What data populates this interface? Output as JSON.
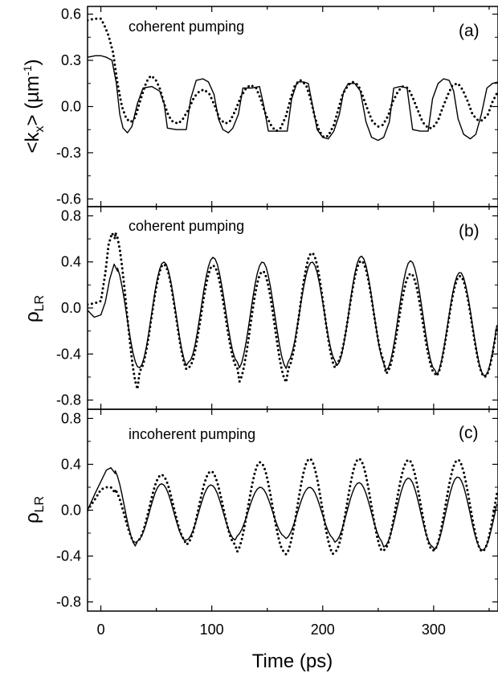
{
  "figure": {
    "xlabel": "Time (ps)",
    "xlim": [
      -12,
      358
    ],
    "xticks": [
      0,
      100,
      200,
      300
    ],
    "xtick_labels": [
      "0",
      "100",
      "200",
      "300"
    ]
  },
  "chart_data": [
    {
      "type": "line",
      "panel": "(a)",
      "annotation": "coherent pumping",
      "ylabel_main": "<k",
      "ylabel_sub": "x",
      "ylabel_rest": "> (µm",
      "ylabel_sup": "-1",
      "ylabel_end": ")",
      "ylim": [
        -0.65,
        0.65
      ],
      "yticks": [
        0.6,
        0.3,
        0.0,
        -0.3,
        -0.6
      ],
      "ytick_labels": [
        "0.6",
        "0.3",
        "0.0",
        "-0.3",
        "-0.6"
      ],
      "series": [
        {
          "style": "solid",
          "points": [
            [
              -12,
              0.32
            ],
            [
              -5,
              0.33
            ],
            [
              0,
              0.33
            ],
            [
              5,
              0.32
            ],
            [
              10,
              0.3
            ],
            [
              14,
              0.15
            ],
            [
              17,
              -0.05
            ],
            [
              20,
              -0.14
            ],
            [
              24,
              -0.17
            ],
            [
              28,
              -0.13
            ],
            [
              33,
              0.02
            ],
            [
              38,
              0.12
            ],
            [
              46,
              0.13
            ],
            [
              53,
              0.1
            ],
            [
              57,
              0.02
            ],
            [
              60,
              -0.14
            ],
            [
              68,
              -0.15
            ],
            [
              77,
              -0.15
            ],
            [
              81,
              0.05
            ],
            [
              86,
              0.17
            ],
            [
              92,
              0.18
            ],
            [
              97,
              0.16
            ],
            [
              102,
              0.08
            ],
            [
              106,
              -0.08
            ],
            [
              110,
              -0.15
            ],
            [
              115,
              -0.17
            ],
            [
              119,
              -0.14
            ],
            [
              124,
              -0.05
            ],
            [
              128,
              0.12
            ],
            [
              136,
              0.12
            ],
            [
              143,
              0.13
            ],
            [
              147,
              0.0
            ],
            [
              151,
              -0.16
            ],
            [
              160,
              -0.16
            ],
            [
              168,
              -0.16
            ],
            [
              172,
              0.05
            ],
            [
              177,
              0.16
            ],
            [
              183,
              0.16
            ],
            [
              187,
              0.15
            ],
            [
              191,
              0.0
            ],
            [
              195,
              -0.15
            ],
            [
              200,
              -0.2
            ],
            [
              205,
              -0.21
            ],
            [
              210,
              -0.16
            ],
            [
              215,
              -0.05
            ],
            [
              219,
              0.1
            ],
            [
              223,
              0.15
            ],
            [
              229,
              0.15
            ],
            [
              234,
              0.1
            ],
            [
              239,
              -0.1
            ],
            [
              244,
              -0.2
            ],
            [
              250,
              -0.22
            ],
            [
              255,
              -0.2
            ],
            [
              260,
              -0.1
            ],
            [
              264,
              0.12
            ],
            [
              270,
              0.13
            ],
            [
              276,
              0.12
            ],
            [
              281,
              -0.15
            ],
            [
              288,
              -0.16
            ],
            [
              295,
              -0.16
            ],
            [
              299,
              0.05
            ],
            [
              304,
              0.15
            ],
            [
              309,
              0.18
            ],
            [
              314,
              0.17
            ],
            [
              318,
              0.1
            ],
            [
              322,
              -0.08
            ],
            [
              327,
              -0.18
            ],
            [
              333,
              -0.21
            ],
            [
              338,
              -0.18
            ],
            [
              343,
              -0.05
            ],
            [
              348,
              0.12
            ],
            [
              353,
              0.15
            ],
            [
              358,
              0.16
            ]
          ]
        },
        {
          "style": "dotted",
          "points": [
            [
              -12,
              0.56
            ],
            [
              -6,
              0.57
            ],
            [
              0,
              0.57
            ],
            [
              3,
              0.53
            ],
            [
              7,
              0.46
            ],
            [
              11,
              0.35
            ],
            [
              15,
              0.15
            ],
            [
              19,
              0.0
            ],
            [
              23,
              -0.08
            ],
            [
              27,
              -0.1
            ],
            [
              31,
              -0.07
            ],
            [
              36,
              0.05
            ],
            [
              41,
              0.16
            ],
            [
              45,
              0.2
            ],
            [
              49,
              0.18
            ],
            [
              53,
              0.12
            ],
            [
              57,
              0.02
            ],
            [
              61,
              -0.06
            ],
            [
              65,
              -0.1
            ],
            [
              70,
              -0.11
            ],
            [
              74,
              -0.08
            ],
            [
              79,
              -0.02
            ],
            [
              84,
              0.06
            ],
            [
              89,
              0.1
            ],
            [
              93,
              0.11
            ],
            [
              98,
              0.08
            ],
            [
              103,
              0.0
            ],
            [
              107,
              -0.08
            ],
            [
              112,
              -0.11
            ],
            [
              116,
              -0.1
            ],
            [
              121,
              -0.03
            ],
            [
              126,
              0.06
            ],
            [
              131,
              0.12
            ],
            [
              135,
              0.14
            ],
            [
              140,
              0.12
            ],
            [
              144,
              0.05
            ],
            [
              149,
              -0.06
            ],
            [
              154,
              -0.13
            ],
            [
              158,
              -0.16
            ],
            [
              162,
              -0.14
            ],
            [
              167,
              -0.06
            ],
            [
              171,
              0.05
            ],
            [
              175,
              0.14
            ],
            [
              180,
              0.17
            ],
            [
              185,
              0.14
            ],
            [
              189,
              0.05
            ],
            [
              193,
              -0.07
            ],
            [
              197,
              -0.16
            ],
            [
              201,
              -0.2
            ],
            [
              205,
              -0.19
            ],
            [
              210,
              -0.12
            ],
            [
              214,
              -0.02
            ],
            [
              218,
              0.08
            ],
            [
              223,
              0.14
            ],
            [
              227,
              0.16
            ],
            [
              232,
              0.14
            ],
            [
              236,
              0.07
            ],
            [
              241,
              -0.03
            ],
            [
              245,
              -0.1
            ],
            [
              250,
              -0.13
            ],
            [
              254,
              -0.12
            ],
            [
              259,
              -0.06
            ],
            [
              263,
              0.03
            ],
            [
              268,
              0.1
            ],
            [
              272,
              0.13
            ],
            [
              277,
              0.12
            ],
            [
              281,
              0.06
            ],
            [
              286,
              -0.03
            ],
            [
              290,
              -0.1
            ],
            [
              295,
              -0.14
            ],
            [
              299,
              -0.14
            ],
            [
              304,
              -0.09
            ],
            [
              308,
              -0.01
            ],
            [
              313,
              0.08
            ],
            [
              317,
              0.14
            ],
            [
              322,
              0.15
            ],
            [
              326,
              0.11
            ],
            [
              331,
              0.03
            ],
            [
              335,
              -0.05
            ],
            [
              340,
              -0.09
            ],
            [
              344,
              -0.09
            ],
            [
              349,
              -0.05
            ],
            [
              353,
              0.03
            ],
            [
              358,
              0.1
            ]
          ]
        }
      ]
    },
    {
      "type": "line",
      "panel": "(b)",
      "annotation": "coherent pumping",
      "ylabel_main": "ρ",
      "ylabel_sub": "LR",
      "ylim": [
        -0.88,
        0.88
      ],
      "yticks": [
        0.8,
        0.4,
        0.0,
        -0.4,
        -0.8
      ],
      "ytick_labels": [
        "0.8",
        "0.4",
        "0.0",
        "-0.4",
        "-0.8"
      ],
      "series": [
        {
          "style": "solid",
          "period": 44.5,
          "phase": -10,
          "trough_first": true,
          "start_points": [
            [
              -12,
              -0.02
            ],
            [
              -6,
              -0.08
            ],
            [
              0,
              -0.06
            ],
            [
              4,
              0.05
            ],
            [
              8,
              0.25
            ],
            [
              12,
              0.38
            ],
            [
              15,
              0.32
            ]
          ],
          "start_after": 15,
          "peaks": [
            0.38,
            0.4,
            0.44,
            0.4,
            0.4,
            0.45,
            0.41,
            0.31
          ],
          "troughs": [
            -0.52,
            -0.52,
            -0.47,
            -0.53,
            -0.47,
            -0.5,
            -0.54,
            -0.59
          ]
        },
        {
          "style": "dotted",
          "period": 44.5,
          "phase": -10,
          "trough_first": true,
          "start_points": [
            [
              -12,
              0.03
            ],
            [
              -6,
              0.04
            ],
            [
              0,
              0.06
            ],
            [
              4,
              0.3
            ],
            [
              7,
              0.55
            ],
            [
              10,
              0.65
            ],
            [
              13,
              0.6
            ]
          ],
          "start_after": 13,
          "peaks": [
            0.66,
            0.38,
            0.37,
            0.32,
            0.48,
            0.41,
            0.3,
            0.28
          ],
          "troughs": [
            -0.72,
            -0.55,
            -0.52,
            -0.65,
            -0.53,
            -0.48,
            -0.57,
            -0.6
          ]
        }
      ]
    },
    {
      "type": "line",
      "panel": "(c)",
      "annotation": "incoherent pumping",
      "ylabel_main": "ρ",
      "ylabel_sub": "LR",
      "ylim": [
        -0.88,
        0.88
      ],
      "yticks": [
        0.8,
        0.4,
        0.0,
        -0.4,
        -0.8
      ],
      "ytick_labels": [
        "0.8",
        "0.4",
        "0.0",
        "-0.4",
        "-0.8"
      ],
      "series": [
        {
          "style": "solid",
          "period": 44.5,
          "phase": -12,
          "trough_first": true,
          "start_points": [
            [
              -12,
              0.0
            ],
            [
              -5,
              0.15
            ],
            [
              0,
              0.25
            ],
            [
              5,
              0.35
            ],
            [
              9,
              0.37
            ],
            [
              13,
              0.32
            ]
          ],
          "start_after": 13,
          "peaks": [
            0.37,
            0.23,
            0.22,
            0.2,
            0.2,
            0.24,
            0.28,
            0.29
          ],
          "troughs": [
            -0.32,
            -0.27,
            -0.26,
            -0.23,
            -0.25,
            -0.28,
            -0.32,
            -0.35
          ]
        },
        {
          "style": "dotted",
          "period": 44.5,
          "phase": -12,
          "trough_first": true,
          "start_points": [
            [
              -12,
              0.0
            ],
            [
              -5,
              0.1
            ],
            [
              0,
              0.18
            ],
            [
              5,
              0.2
            ],
            [
              9,
              0.2
            ],
            [
              13,
              0.15
            ]
          ],
          "start_after": 13,
          "peaks": [
            0.2,
            0.31,
            0.34,
            0.42,
            0.45,
            0.45,
            0.44,
            0.44
          ],
          "troughs": [
            -0.3,
            -0.27,
            -0.3,
            -0.37,
            -0.39,
            -0.37,
            -0.35,
            -0.36
          ]
        }
      ]
    }
  ]
}
